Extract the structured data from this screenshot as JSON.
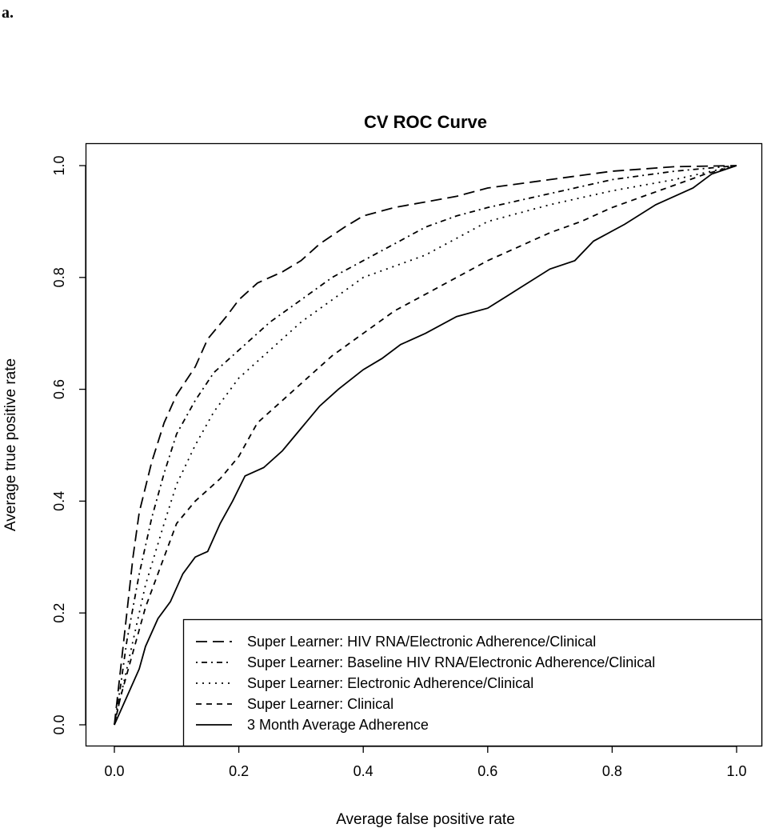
{
  "panel_label": "a.",
  "chart_data": {
    "type": "line",
    "title": "CV ROC Curve",
    "xlabel": "Average false positive rate",
    "ylabel": "Average true positive rate",
    "xlim": [
      0,
      1
    ],
    "ylim": [
      0,
      1
    ],
    "xticks": [
      "0.0",
      "0.2",
      "0.4",
      "0.6",
      "0.8",
      "1.0"
    ],
    "yticks": [
      "0.0",
      "0.2",
      "0.4",
      "0.6",
      "0.8",
      "1.0"
    ],
    "grid": false,
    "legend_position": "bottom-right",
    "series": [
      {
        "name": "Super Learner: HIV RNA/Electronic Adherence/Clinical",
        "style": "longdash",
        "x": [
          0,
          0.01,
          0.02,
          0.03,
          0.04,
          0.06,
          0.08,
          0.1,
          0.13,
          0.15,
          0.18,
          0.2,
          0.23,
          0.27,
          0.3,
          0.33,
          0.37,
          0.4,
          0.45,
          0.5,
          0.55,
          0.6,
          0.7,
          0.8,
          0.9,
          1
        ],
        "y": [
          0,
          0.1,
          0.2,
          0.3,
          0.38,
          0.47,
          0.54,
          0.59,
          0.64,
          0.69,
          0.73,
          0.76,
          0.79,
          0.81,
          0.83,
          0.86,
          0.89,
          0.91,
          0.925,
          0.935,
          0.945,
          0.96,
          0.975,
          0.99,
          0.998,
          1
        ]
      },
      {
        "name": "Super Learner: Baseline HIV RNA/Electronic Adherence/Clinical",
        "style": "dotdash",
        "x": [
          0,
          0.01,
          0.02,
          0.04,
          0.06,
          0.08,
          0.1,
          0.13,
          0.16,
          0.2,
          0.25,
          0.3,
          0.35,
          0.4,
          0.45,
          0.5,
          0.55,
          0.6,
          0.7,
          0.8,
          0.9,
          1
        ],
        "y": [
          0,
          0.07,
          0.15,
          0.27,
          0.37,
          0.45,
          0.52,
          0.58,
          0.63,
          0.67,
          0.72,
          0.76,
          0.8,
          0.83,
          0.86,
          0.89,
          0.91,
          0.925,
          0.95,
          0.975,
          0.99,
          1
        ]
      },
      {
        "name": "Super Learner: Electronic Adherence/Clinical",
        "style": "dotted",
        "x": [
          0,
          0.01,
          0.03,
          0.05,
          0.08,
          0.1,
          0.13,
          0.16,
          0.2,
          0.25,
          0.3,
          0.35,
          0.4,
          0.45,
          0.5,
          0.55,
          0.6,
          0.7,
          0.8,
          0.9,
          1
        ],
        "y": [
          0,
          0.05,
          0.15,
          0.25,
          0.36,
          0.43,
          0.5,
          0.56,
          0.62,
          0.67,
          0.72,
          0.76,
          0.8,
          0.82,
          0.84,
          0.87,
          0.9,
          0.93,
          0.955,
          0.975,
          1
        ]
      },
      {
        "name": "Super Learner: Clinical",
        "style": "dashed",
        "x": [
          0,
          0.01,
          0.03,
          0.05,
          0.08,
          0.1,
          0.13,
          0.17,
          0.2,
          0.23,
          0.27,
          0.3,
          0.35,
          0.4,
          0.45,
          0.5,
          0.55,
          0.6,
          0.65,
          0.7,
          0.75,
          0.8,
          0.85,
          0.9,
          0.95,
          1
        ],
        "y": [
          0,
          0.05,
          0.13,
          0.21,
          0.3,
          0.36,
          0.4,
          0.44,
          0.48,
          0.54,
          0.58,
          0.61,
          0.66,
          0.7,
          0.74,
          0.77,
          0.8,
          0.83,
          0.855,
          0.88,
          0.9,
          0.925,
          0.945,
          0.965,
          0.985,
          1
        ]
      },
      {
        "name": "3 Month Average Adherence",
        "style": "solid",
        "x": [
          0,
          0.02,
          0.04,
          0.05,
          0.07,
          0.09,
          0.11,
          0.13,
          0.15,
          0.17,
          0.19,
          0.21,
          0.24,
          0.27,
          0.3,
          0.33,
          0.36,
          0.4,
          0.43,
          0.46,
          0.5,
          0.55,
          0.6,
          0.65,
          0.7,
          0.74,
          0.77,
          0.82,
          0.87,
          0.9,
          0.93,
          0.96,
          1
        ],
        "y": [
          0,
          0.05,
          0.1,
          0.14,
          0.19,
          0.22,
          0.27,
          0.3,
          0.31,
          0.36,
          0.4,
          0.445,
          0.46,
          0.49,
          0.53,
          0.57,
          0.6,
          0.635,
          0.655,
          0.68,
          0.7,
          0.73,
          0.745,
          0.78,
          0.815,
          0.83,
          0.865,
          0.895,
          0.93,
          0.945,
          0.96,
          0.985,
          1
        ]
      }
    ]
  }
}
